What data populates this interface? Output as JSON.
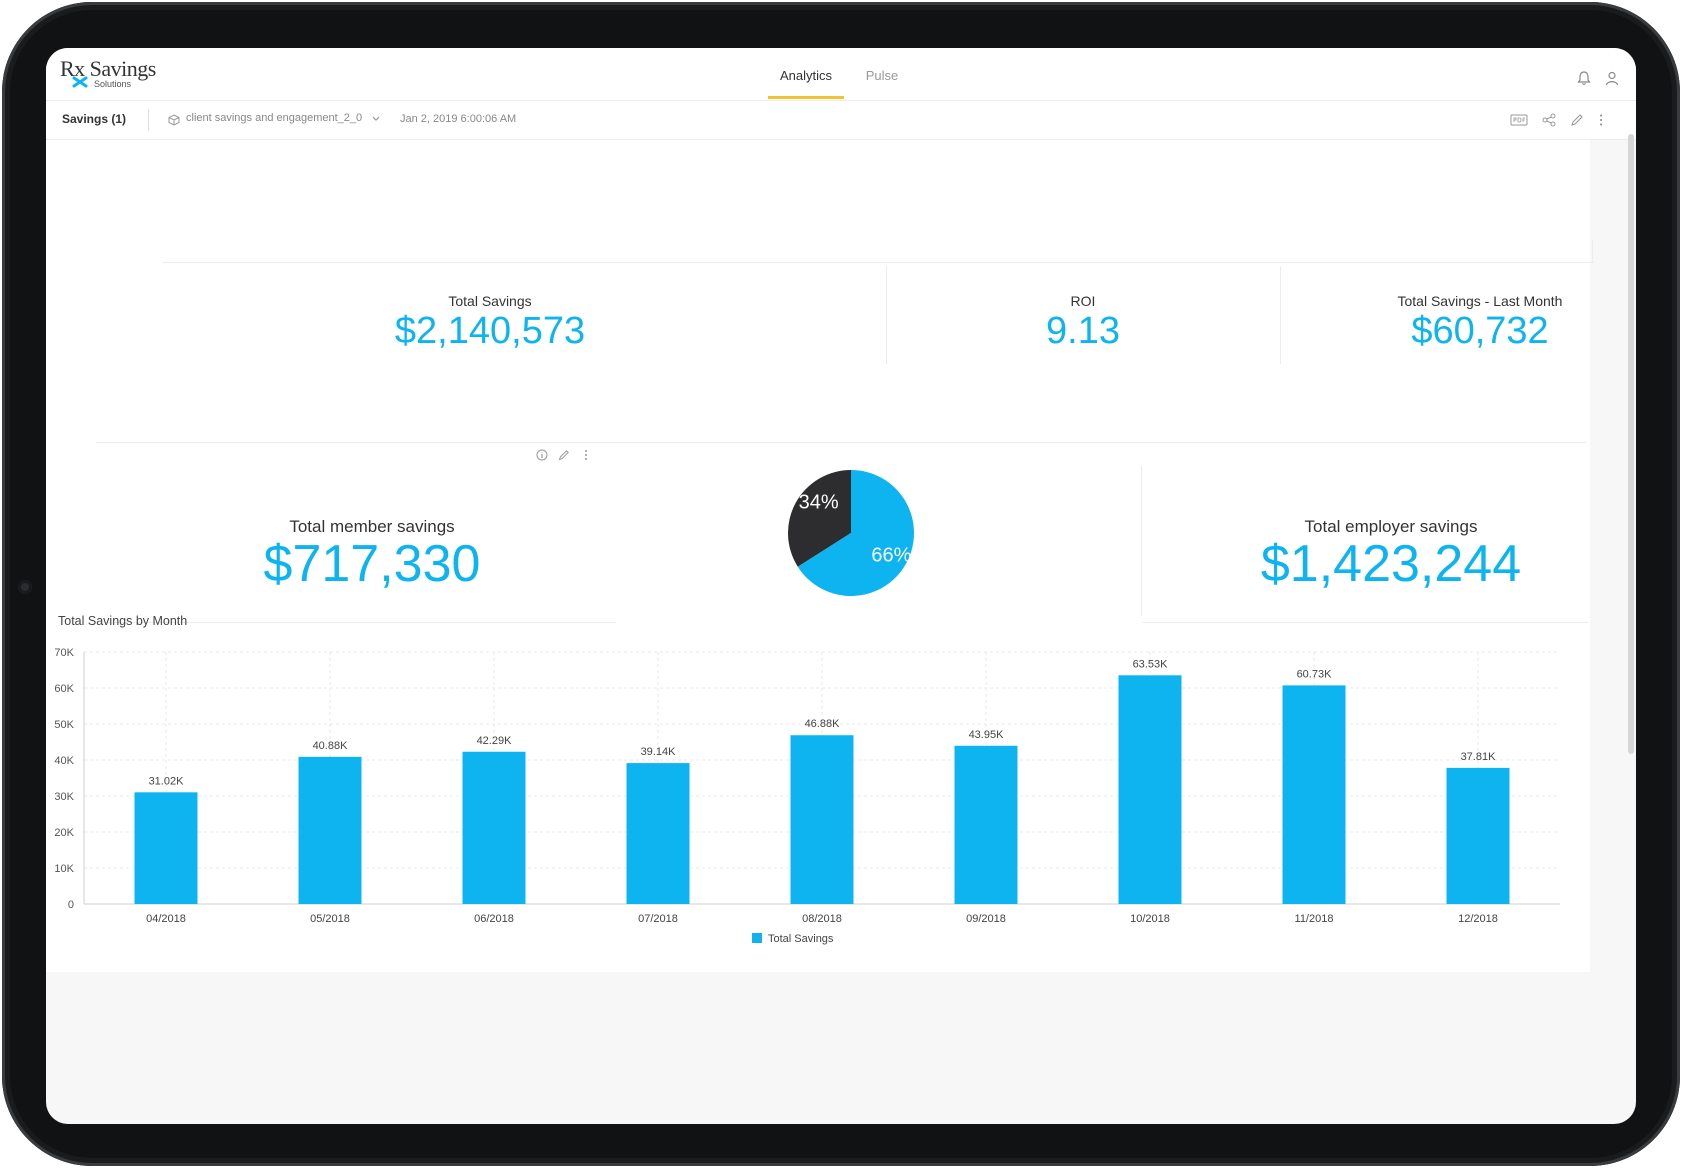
{
  "header": {
    "logo_main": "Rx Savings",
    "logo_sub": "Solutions",
    "tabs": [
      {
        "label": "Analytics",
        "active": true
      },
      {
        "label": "Pulse",
        "active": false
      }
    ]
  },
  "toolbar": {
    "title": "Savings (1)",
    "datasource": "client savings and engagement_2_0",
    "timestamp": "Jan 2, 2019 6:00:06 AM"
  },
  "kpis": {
    "total_savings": {
      "label": "Total Savings",
      "value": "$2,140,573"
    },
    "roi": {
      "label": "ROI",
      "value": "9.13"
    },
    "last_month": {
      "label": "Total Savings - Last Month",
      "value": "$60,732"
    },
    "member": {
      "label": "Total member savings",
      "value": "$717,330"
    },
    "employer": {
      "label": "Total employer savings",
      "value": "$1,423,244"
    }
  },
  "pie": {
    "slices": [
      {
        "label": "34%",
        "value": 34,
        "color": "#2d2d2f"
      },
      {
        "label": "66%",
        "value": 66,
        "color": "#0db4ef"
      }
    ]
  },
  "colors": {
    "accent": "#0db4ef",
    "tab_underline": "#f2c230"
  },
  "chart_data": {
    "type": "bar",
    "title": "Total Savings by Month",
    "categories": [
      "04/2018",
      "05/2018",
      "06/2018",
      "07/2018",
      "08/2018",
      "09/2018",
      "10/2018",
      "11/2018",
      "12/2018"
    ],
    "series": [
      {
        "name": "Total Savings",
        "values": [
          31020,
          40880,
          42290,
          39140,
          46880,
          43950,
          63530,
          60730,
          37810
        ],
        "labels": [
          "31.02K",
          "40.88K",
          "42.29K",
          "39.14K",
          "46.88K",
          "43.95K",
          "63.53K",
          "60.73K",
          "37.81K"
        ]
      }
    ],
    "yticks": [
      "0",
      "10K",
      "20K",
      "30K",
      "40K",
      "50K",
      "60K",
      "70K"
    ],
    "ylim": [
      0,
      70000
    ],
    "grid": true,
    "legend": "bottom-center"
  }
}
